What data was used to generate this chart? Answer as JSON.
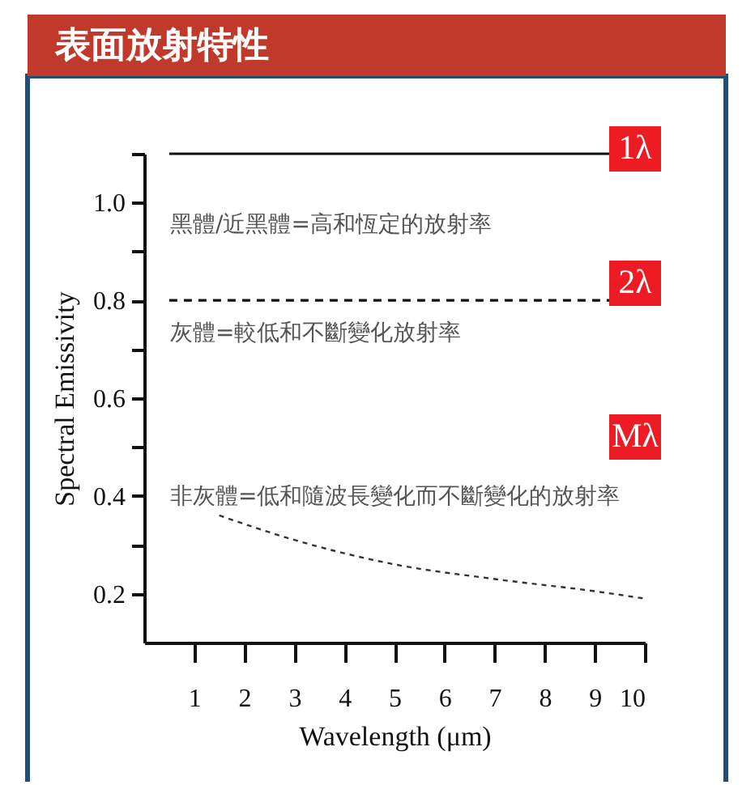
{
  "chart_data": {
    "type": "line",
    "title": "表面放射特性",
    "xlabel": "Wavelength (μm)",
    "ylabel": "Spectral Emissivity",
    "xlim": [
      0,
      10
    ],
    "xticks": [
      1,
      2,
      3,
      4,
      5,
      6,
      7,
      8,
      9,
      10
    ],
    "ylim": [
      0.1,
      1.1
    ],
    "yticks": [
      0.2,
      {
        "value": 0.3,
        "label": null
      },
      0.4,
      {
        "value": 0.5,
        "label": null
      },
      0.6,
      {
        "value": 0.7,
        "label": null
      },
      0.8,
      {
        "value": 0.9,
        "label": null
      },
      {
        "value": 1.0,
        "label": "1.0"
      },
      {
        "value": 1.1,
        "label": null
      }
    ],
    "grid": false,
    "marker": "none",
    "series": [
      {
        "color": "#111111",
        "line_style": "solid",
        "x": [
          0.5,
          9.3
        ],
        "values": [
          1.1,
          1.1
        ]
      },
      {
        "color": "#111111",
        "line_style": "dashed",
        "x": [
          0.5,
          9.3
        ],
        "values": [
          0.8,
          0.8
        ]
      },
      {
        "color": "#333333",
        "line_style": "dotted",
        "x": [
          1.5,
          3,
          5,
          7,
          9,
          10
        ],
        "values": [
          0.36,
          0.31,
          0.26,
          0.23,
          0.205,
          0.19
        ]
      }
    ],
    "annotations": [
      "1λ",
      "黑體/近黑體=高和恆定的放射率",
      "2λ",
      "灰體=較低和不斷變化放射率",
      "Mλ",
      "非灰體=低和隨波長變化而不斷變化的放射率"
    ]
  }
}
